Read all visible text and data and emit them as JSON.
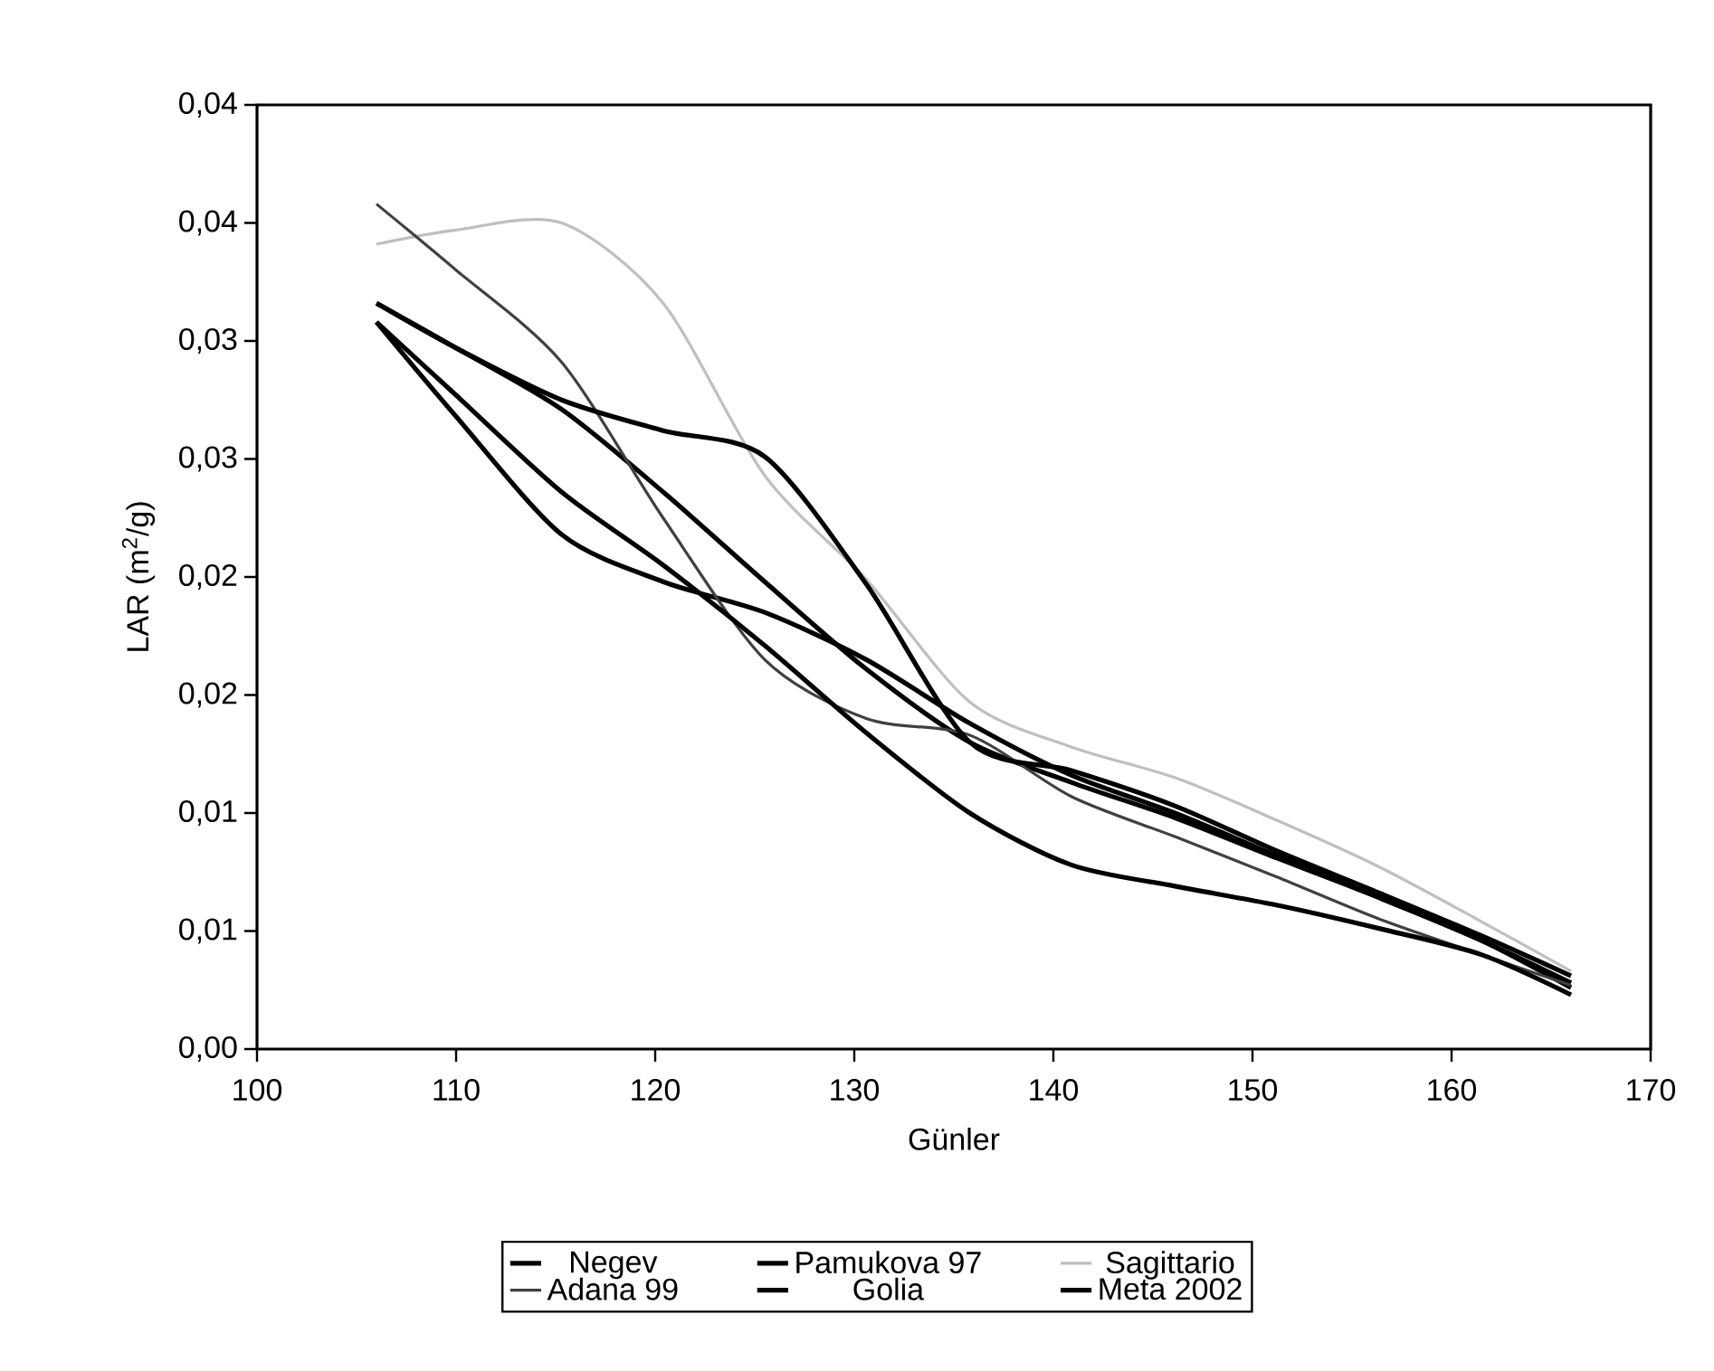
{
  "chart_data": {
    "type": "line",
    "xlabel": "Günler",
    "ylabel": "LAR (m$^{2}$/g)",
    "x": [
      106,
      110,
      115.3,
      120.4,
      125.5,
      130.6,
      135.8,
      140.9,
      146.1,
      151.2,
      156.4,
      161.5,
      166
    ],
    "series": [
      {
        "name": "Negev",
        "color": "#000000",
        "values": [
          0.0316,
          0.0297,
          0.0271,
          0.0236,
          0.0198,
          0.0161,
          0.013,
          0.0113,
          0.0098,
          0.0081,
          0.0064,
          0.0046,
          0.0028
        ]
      },
      {
        "name": "Pamukova 97",
        "color": "#000000",
        "values": [
          0.0308,
          0.0268,
          0.0218,
          0.0198,
          0.0185,
          0.0165,
          0.0138,
          0.0116,
          0.01,
          0.0082,
          0.0064,
          0.0046,
          0.0026
        ]
      },
      {
        "name": "Sagittario",
        "color": "#bfbfbf",
        "values": [
          0.0341,
          0.0347,
          0.035,
          0.0316,
          0.0243,
          0.0199,
          0.0147,
          0.0128,
          0.0115,
          0.0097,
          0.0077,
          0.0054,
          0.0033
        ]
      },
      {
        "name": "Adana 99",
        "color": "#404040",
        "values": [
          0.0358,
          0.033,
          0.0291,
          0.0225,
          0.0165,
          0.014,
          0.0133,
          0.0107,
          0.009,
          0.0073,
          0.0055,
          0.004,
          0.0027
        ]
      },
      {
        "name": "Golia",
        "color": "#000000",
        "values": [
          0.0308,
          0.0277,
          0.0236,
          0.0205,
          0.0171,
          0.0134,
          0.01,
          0.0078,
          0.0069,
          0.0061,
          0.0051,
          0.004,
          0.0023
        ]
      },
      {
        "name": "Meta 2002",
        "color": "#000000",
        "values": [
          0.0316,
          0.0297,
          0.0275,
          0.0262,
          0.0251,
          0.0197,
          0.013,
          0.0118,
          0.0103,
          0.0084,
          0.0066,
          0.0048,
          0.0031
        ]
      }
    ],
    "xlim": [
      100,
      170
    ],
    "xticks": [
      100,
      110,
      120,
      130,
      140,
      150,
      160,
      170
    ],
    "ylim": [
      0,
      0.04
    ],
    "yticks": [
      {
        "value": 0,
        "label": "0,00"
      },
      {
        "value": 0.005,
        "label": "0,01"
      },
      {
        "value": 0.01,
        "label": "0,01"
      },
      {
        "value": 0.015,
        "label": "0,02"
      },
      {
        "value": 0.02,
        "label": "0,02"
      },
      {
        "value": 0.025,
        "label": "0,03"
      },
      {
        "value": 0.03,
        "label": "0,03"
      },
      {
        "value": 0.035,
        "label": "0,04"
      },
      {
        "value": 0.04,
        "label": "0,04"
      }
    ],
    "grid": false,
    "legend": "bottom"
  }
}
